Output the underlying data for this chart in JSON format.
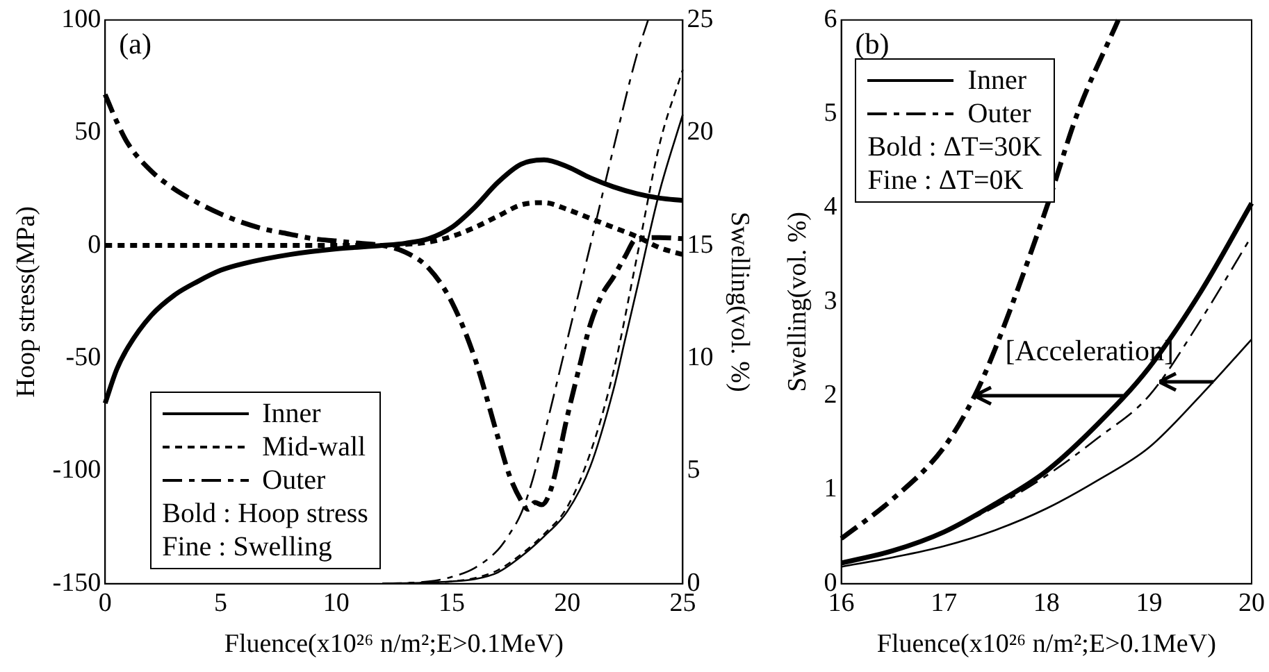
{
  "chart_data": [
    {
      "type": "line",
      "title": "(a)",
      "xlabel": "Fluence(x10²⁶ n/m²;E>0.1MeV)",
      "ylabel": "Hoop stress(MPa)",
      "y2label": "Swelling(vol. %)",
      "xlim": [
        0,
        25
      ],
      "xticks": [
        0,
        5,
        10,
        15,
        20,
        25
      ],
      "ylim": [
        -150,
        100
      ],
      "yticks": [
        -150,
        -100,
        -50,
        0,
        50,
        100
      ],
      "y2lim": [
        0,
        25
      ],
      "y2ticks": [
        0,
        5,
        10,
        15,
        20,
        25
      ],
      "grid": false,
      "legend": "bottom left",
      "marker": "none",
      "legend_title": "Bold : Hoop stress\nFine : Swelling",
      "series": [
        {
          "name": "Inner",
          "color": "#000000",
          "line_style": "solid",
          "x": [
            0,
            0.5,
            1,
            2,
            3,
            4,
            5,
            6,
            8,
            10,
            12,
            13,
            14,
            15,
            16,
            17,
            18,
            19,
            20,
            21,
            22,
            23,
            24,
            25
          ],
          "values": [
            -70,
            -55,
            -45,
            -31,
            -22,
            -16,
            -11,
            -8,
            -4,
            -1.5,
            0,
            1,
            3,
            8,
            17,
            28,
            36,
            38,
            35,
            30,
            26,
            23,
            21,
            20
          ]
        },
        {
          "name": "Mid-wall",
          "color": "#000000",
          "line_style": "dashed",
          "x": [
            0,
            5,
            10,
            12,
            13,
            14,
            15,
            16,
            17,
            18,
            19,
            20,
            21,
            22,
            23,
            24,
            25
          ],
          "values": [
            0,
            0,
            0,
            0,
            0.5,
            1.5,
            4,
            8,
            13,
            18,
            19,
            16,
            12,
            8,
            4,
            -1,
            -4
          ]
        },
        {
          "name": "Outer",
          "color": "#000000",
          "line_style": "dashdot",
          "x": [
            0,
            0.5,
            1,
            2,
            3,
            4,
            5,
            6,
            7,
            8,
            9,
            10,
            11,
            12,
            13,
            14,
            15,
            16,
            17,
            17.5,
            18,
            18.3,
            18.6,
            18.9,
            19.3,
            20,
            20.5,
            21,
            21.5,
            22,
            22.5,
            23,
            24,
            25
          ],
          "values": [
            67,
            55,
            45,
            33,
            25,
            19,
            14,
            10,
            7,
            5,
            3,
            2,
            1,
            0,
            -3,
            -10,
            -25,
            -50,
            -85,
            -102,
            -113,
            -117,
            -114,
            -115,
            -108,
            -76,
            -55,
            -35,
            -22,
            -14,
            -5,
            3,
            3.5,
            3
          ]
        },
        {
          "color": "#000000",
          "line_style": "solid",
          "axis": "y2",
          "x": [
            12,
            14,
            15,
            16,
            17,
            18,
            19,
            20,
            21,
            22,
            22.5,
            23,
            24,
            25
          ],
          "values": [
            0,
            0.05,
            0.1,
            0.2,
            0.5,
            1.2,
            2.1,
            3.2,
            5.2,
            8.6,
            10.8,
            13,
            17.4,
            20.8
          ]
        },
        {
          "color": "#000000",
          "line_style": "dashed",
          "axis": "y2",
          "x": [
            12,
            14,
            15,
            16,
            17,
            18,
            19,
            20,
            21,
            22,
            23,
            24,
            25
          ],
          "values": [
            0,
            0.05,
            0.1,
            0.25,
            0.6,
            1.3,
            2.2,
            3.4,
            5.8,
            9.4,
            14.4,
            19.5,
            22.8
          ]
        },
        {
          "color": "#000000",
          "line_style": "dashdot",
          "axis": "y2",
          "x": [
            12,
            14,
            15,
            16,
            17,
            17.5,
            18,
            18.5,
            19,
            20,
            21,
            22,
            23,
            23.5
          ],
          "values": [
            0,
            0.1,
            0.3,
            0.7,
            1.5,
            2.2,
            3.1,
            4.6,
            6.6,
            10.8,
            15,
            19.3,
            23.4,
            25
          ]
        }
      ]
    },
    {
      "type": "line",
      "title": "(b)",
      "xlabel": "Fluence(x10²⁶ n/m²;E>0.1MeV)",
      "ylabel": "Swelling(vol. %)",
      "xlim": [
        16,
        20
      ],
      "xticks": [
        16,
        17,
        18,
        19,
        20
      ],
      "ylim": [
        0,
        6
      ],
      "yticks": [
        0,
        1,
        2,
        3,
        4,
        5,
        6
      ],
      "grid": false,
      "legend": "top left",
      "marker": "none",
      "legend_title": "Bold : ΔT=30K\nFine : ΔT=0K",
      "annotations": [
        {
          "text": "[Acceleration]",
          "x": 17.3,
          "y": 2.0
        }
      ],
      "series": [
        {
          "name": "Inner",
          "color": "#000000",
          "line_style": "solid",
          "x": [
            16,
            16.5,
            17,
            17.5,
            18,
            18.5,
            19,
            19.5,
            20
          ],
          "values": [
            0.22,
            0.35,
            0.55,
            0.85,
            1.2,
            1.7,
            2.3,
            3.1,
            4.05
          ]
        },
        {
          "name": "Outer",
          "color": "#000000",
          "line_style": "dashdot",
          "x": [
            16,
            16.5,
            17,
            17.3,
            17.5,
            18,
            18.3,
            18.7
          ],
          "values": [
            0.48,
            0.9,
            1.45,
            2.0,
            2.5,
            4.0,
            5.0,
            6.0
          ]
        },
        {
          "color": "#000000",
          "line_style": "solid",
          "x": [
            16,
            16.5,
            17,
            17.5,
            18,
            18.5,
            19,
            19.5,
            20
          ],
          "values": [
            0.18,
            0.28,
            0.4,
            0.57,
            0.8,
            1.1,
            1.45,
            2.0,
            2.6
          ]
        },
        {
          "color": "#000000",
          "line_style": "dashdot",
          "x": [
            16,
            16.5,
            17,
            17.5,
            18,
            18.5,
            19,
            19.5,
            20
          ],
          "values": [
            0.22,
            0.35,
            0.55,
            0.82,
            1.15,
            1.55,
            2.0,
            2.8,
            3.7
          ]
        }
      ]
    }
  ]
}
